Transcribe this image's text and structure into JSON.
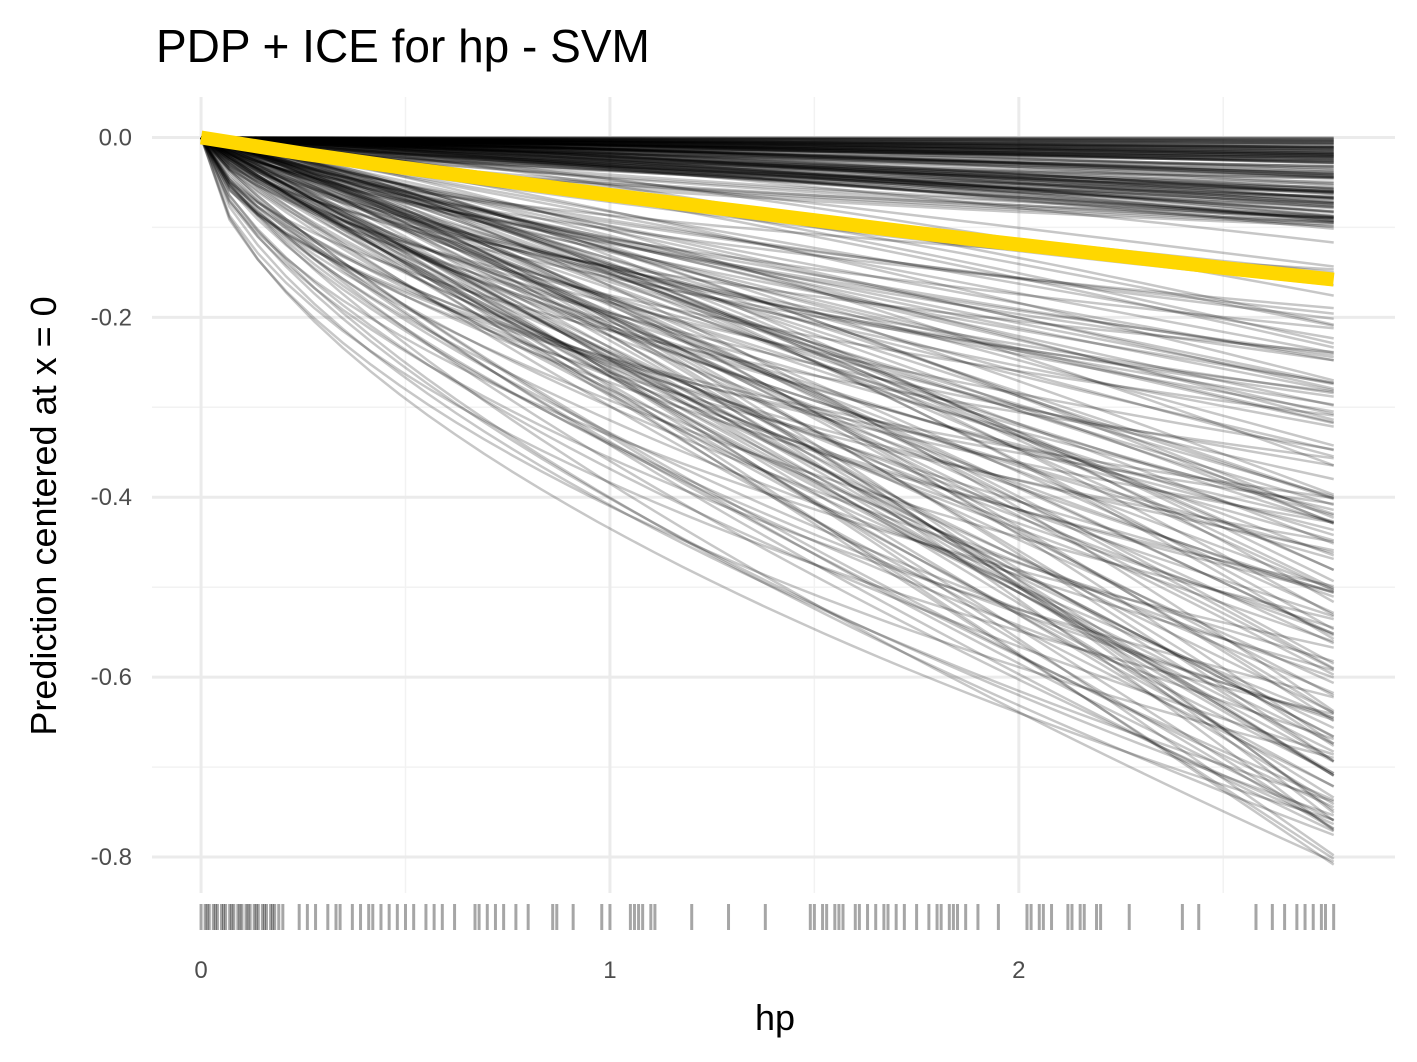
{
  "chart_data": {
    "type": "line",
    "title": "PDP + ICE for hp - SVM",
    "xlabel": "hp",
    "ylabel": "Prediction centered at x = 0",
    "xlim": [
      -0.12,
      2.92
    ],
    "ylim": [
      -0.84,
      0.045
    ],
    "x_ticks": [
      0,
      1,
      2
    ],
    "x_tick_labels": [
      "0",
      "1",
      "2"
    ],
    "y_ticks": [
      0.0,
      -0.2,
      -0.4,
      -0.6,
      -0.8
    ],
    "y_tick_labels": [
      "0.0",
      "-0.2",
      "-0.4",
      "-0.6",
      "-0.8"
    ],
    "x_minor_ticks": [
      0.5,
      1.5,
      2.5
    ],
    "y_minor_ticks": [
      -0.1,
      -0.3,
      -0.5,
      -0.7
    ],
    "grid": true,
    "x_range": [
      0,
      2.77
    ],
    "ice_curves": {
      "color": "#000000",
      "opacity": 0.22,
      "count": 300,
      "end_value_range": [
        -0.81,
        0.0
      ]
    },
    "series": [
      {
        "color": "#FFD700",
        "x": [
          0,
          0.25,
          0.5,
          0.75,
          1.0,
          1.25,
          1.5,
          1.75,
          2.0,
          2.25,
          2.5,
          2.77
        ],
        "values": [
          0.0,
          -0.018,
          -0.034,
          -0.049,
          -0.064,
          -0.078,
          -0.092,
          -0.106,
          -0.119,
          -0.132,
          -0.145,
          -0.158
        ]
      }
    ],
    "rug": {
      "color": "#000000",
      "x": [
        0.0,
        0.01,
        0.015,
        0.02,
        0.03,
        0.035,
        0.04,
        0.05,
        0.055,
        0.06,
        0.07,
        0.075,
        0.08,
        0.09,
        0.095,
        0.1,
        0.11,
        0.115,
        0.12,
        0.13,
        0.135,
        0.14,
        0.15,
        0.155,
        0.16,
        0.17,
        0.175,
        0.18,
        0.19,
        0.2,
        0.24,
        0.26,
        0.28,
        0.31,
        0.33,
        0.34,
        0.37,
        0.39,
        0.41,
        0.42,
        0.44,
        0.46,
        0.48,
        0.5,
        0.52,
        0.55,
        0.57,
        0.59,
        0.62,
        0.67,
        0.68,
        0.7,
        0.72,
        0.74,
        0.77,
        0.8,
        0.86,
        0.87,
        0.91,
        0.98,
        1.0,
        1.05,
        1.06,
        1.07,
        1.08,
        1.1,
        1.11,
        1.2,
        1.29,
        1.38,
        1.49,
        1.5,
        1.52,
        1.53,
        1.55,
        1.56,
        1.57,
        1.6,
        1.61,
        1.63,
        1.65,
        1.67,
        1.68,
        1.7,
        1.72,
        1.75,
        1.78,
        1.8,
        1.81,
        1.83,
        1.84,
        1.85,
        1.87,
        1.9,
        1.95,
        2.02,
        2.03,
        2.05,
        2.06,
        2.08,
        2.12,
        2.13,
        2.15,
        2.16,
        2.19,
        2.2,
        2.27,
        2.4,
        2.44,
        2.58,
        2.62,
        2.65,
        2.68,
        2.7,
        2.72,
        2.74,
        2.75,
        2.77
      ]
    }
  }
}
